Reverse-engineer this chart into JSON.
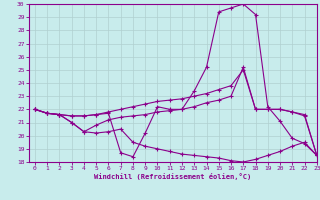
{
  "xlabel": "Windchill (Refroidissement éolien,°C)",
  "xlim": [
    -0.5,
    23
  ],
  "ylim": [
    18,
    30
  ],
  "yticks": [
    18,
    19,
    20,
    21,
    22,
    23,
    24,
    25,
    26,
    27,
    28,
    29,
    30
  ],
  "xticks": [
    0,
    1,
    2,
    3,
    4,
    5,
    6,
    7,
    8,
    9,
    10,
    11,
    12,
    13,
    14,
    15,
    16,
    17,
    18,
    19,
    20,
    21,
    22,
    23
  ],
  "bg_color": "#c8ecec",
  "grid_color": "#b0d0d0",
  "line_color": "#8b008b",
  "line1_x": [
    0,
    1,
    2,
    3,
    4,
    5,
    6,
    7,
    8,
    9,
    10,
    11,
    12,
    13,
    14,
    15,
    16,
    17,
    18,
    19,
    20,
    21,
    22,
    23
  ],
  "line1_y": [
    22,
    21.7,
    21.6,
    21.5,
    21.5,
    21.6,
    21.7,
    18.7,
    18.4,
    20.2,
    22.2,
    22.0,
    22.0,
    23.4,
    25.2,
    29.4,
    29.7,
    30.0,
    29.2,
    22.2,
    21.1,
    19.8,
    19.4,
    18.5
  ],
  "line2_x": [
    0,
    1,
    2,
    3,
    4,
    5,
    6,
    7,
    8,
    9,
    10,
    11,
    12,
    13,
    14,
    15,
    16,
    17,
    18,
    19,
    20,
    21,
    22,
    23
  ],
  "line2_y": [
    22,
    21.7,
    21.6,
    21.0,
    20.3,
    20.8,
    21.2,
    21.4,
    21.5,
    21.6,
    21.8,
    21.9,
    22.0,
    22.2,
    22.5,
    22.7,
    23.0,
    25.2,
    22.0,
    22.0,
    22.0,
    21.8,
    21.5,
    18.5
  ],
  "line3_x": [
    0,
    1,
    2,
    3,
    4,
    5,
    6,
    7,
    8,
    9,
    10,
    11,
    12,
    13,
    14,
    15,
    16,
    17,
    18,
    19,
    20,
    21,
    22,
    23
  ],
  "line3_y": [
    22,
    21.7,
    21.6,
    21.0,
    20.3,
    20.2,
    20.3,
    20.5,
    19.5,
    19.2,
    19.0,
    18.8,
    18.6,
    18.5,
    18.4,
    18.3,
    18.1,
    18.0,
    18.2,
    18.5,
    18.8,
    19.2,
    19.5,
    18.5
  ],
  "line4_x": [
    0,
    1,
    2,
    3,
    4,
    5,
    6,
    7,
    8,
    9,
    10,
    11,
    12,
    13,
    14,
    15,
    16,
    17,
    18,
    19,
    20,
    21,
    22,
    23
  ],
  "line4_y": [
    22,
    21.7,
    21.6,
    21.5,
    21.5,
    21.6,
    21.8,
    22.0,
    22.2,
    22.4,
    22.6,
    22.7,
    22.8,
    23.0,
    23.2,
    23.5,
    23.8,
    25.0,
    22.0,
    22.0,
    22.0,
    21.8,
    21.6,
    18.5
  ]
}
